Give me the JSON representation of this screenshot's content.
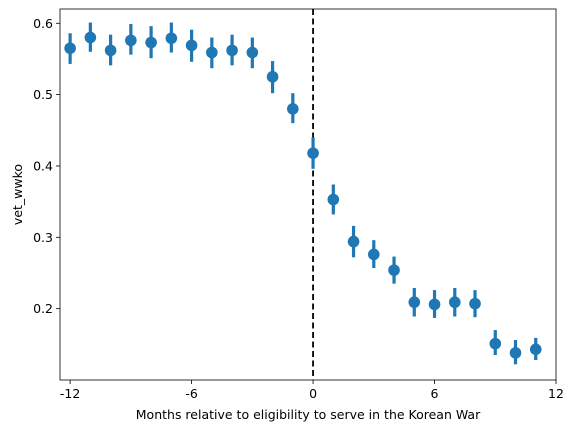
{
  "chart_data": {
    "type": "scatter",
    "title": "",
    "xlabel": "Months relative to eligibility to serve in the Korean War",
    "ylabel": "vet_wwko",
    "xlim": [
      -12.5,
      12
    ],
    "ylim": [
      0.1,
      0.62
    ],
    "xticks": [
      -12,
      -6,
      0,
      6,
      12
    ],
    "xtick_labels": [
      "-12",
      "-6",
      "0",
      "6",
      "12"
    ],
    "yticks": [
      0.2,
      0.3,
      0.4,
      0.5,
      0.6
    ],
    "ytick_labels": [
      "0.2",
      "0.3",
      "0.4",
      "0.5",
      "0.6"
    ],
    "grid": false,
    "reference_line": {
      "x": 0,
      "style": "dashed",
      "color": "#000000"
    },
    "series": [
      {
        "color": "#1f77b4",
        "x": [
          -12,
          -11,
          -10,
          -9,
          -8,
          -7,
          -6,
          -5,
          -4,
          -3,
          -2,
          -1,
          0,
          1,
          2,
          3,
          4,
          5,
          6,
          7,
          8,
          9,
          10,
          11
        ],
        "y": [
          0.565,
          0.58,
          0.562,
          0.576,
          0.573,
          0.579,
          0.569,
          0.559,
          0.562,
          0.559,
          0.525,
          0.48,
          0.418,
          0.353,
          0.294,
          0.276,
          0.254,
          0.209,
          0.206,
          0.209,
          0.207,
          0.151,
          0.138,
          0.143
        ],
        "err_low": [
          0.543,
          0.56,
          0.541,
          0.556,
          0.551,
          0.559,
          0.546,
          0.537,
          0.541,
          0.537,
          0.502,
          0.46,
          0.396,
          0.332,
          0.272,
          0.257,
          0.235,
          0.189,
          0.187,
          0.189,
          0.188,
          0.135,
          0.122,
          0.128
        ],
        "err_high": [
          0.586,
          0.601,
          0.584,
          0.599,
          0.596,
          0.601,
          0.591,
          0.58,
          0.584,
          0.58,
          0.547,
          0.502,
          0.44,
          0.374,
          0.316,
          0.296,
          0.273,
          0.229,
          0.226,
          0.229,
          0.226,
          0.17,
          0.156,
          0.159
        ]
      }
    ]
  }
}
